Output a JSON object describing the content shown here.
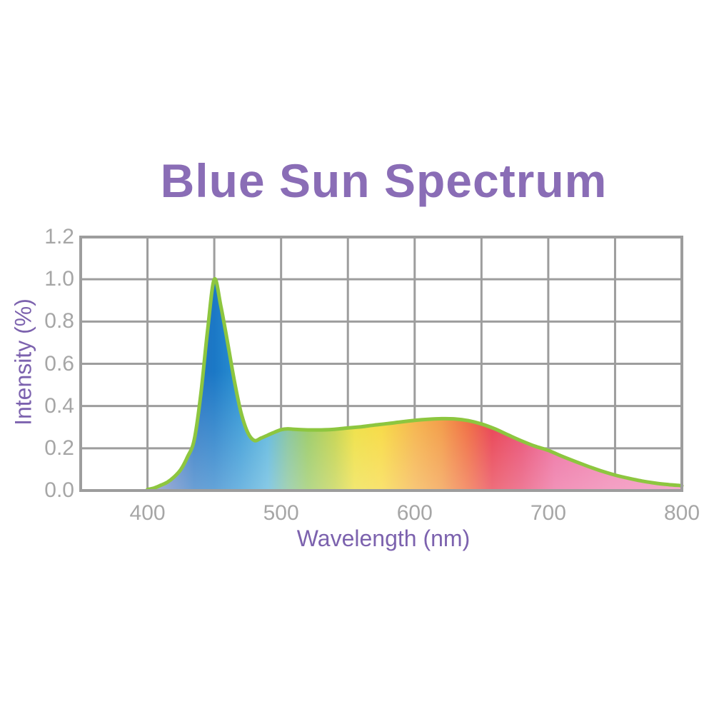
{
  "chart": {
    "title": "Blue Sun Spectrum",
    "xlabel": "Wavelength (nm)",
    "ylabel": "Intensity (%)"
  },
  "chart_data": {
    "type": "area",
    "title": "Blue Sun Spectrum",
    "xlabel": "Wavelength (nm)",
    "ylabel": "Intensity (%)",
    "xlim": [
      350,
      800
    ],
    "ylim": [
      0,
      1.2
    ],
    "x_gridline_step_nm": 50,
    "y_gridline_step": 0.2,
    "grid": true,
    "legend": "none",
    "x_ticks": [
      {
        "value": 400,
        "label": "400"
      },
      {
        "value": 500,
        "label": "500"
      },
      {
        "value": 600,
        "label": "600"
      },
      {
        "value": 700,
        "label": "700"
      },
      {
        "value": 800,
        "label": "800"
      }
    ],
    "y_ticks": [
      {
        "value": 0.0,
        "label": "0.0"
      },
      {
        "value": 0.2,
        "label": "0.2"
      },
      {
        "value": 0.4,
        "label": "0.4"
      },
      {
        "value": 0.6,
        "label": "0.6"
      },
      {
        "value": 0.8,
        "label": "0.8"
      },
      {
        "value": 1.0,
        "label": "1.0"
      },
      {
        "value": 1.2,
        "label": "1.2"
      }
    ],
    "series": [
      {
        "name": "Blue Sun Spectrum",
        "x": [
          400,
          405,
          410,
          415,
          420,
          425,
          430,
          435,
          440,
          445,
          450,
          455,
          460,
          465,
          470,
          475,
          480,
          485,
          490,
          495,
          500,
          505,
          510,
          520,
          530,
          540,
          550,
          560,
          570,
          580,
          590,
          600,
          610,
          620,
          630,
          640,
          650,
          660,
          670,
          680,
          690,
          700,
          710,
          720,
          730,
          740,
          750,
          760,
          770,
          780,
          790,
          800
        ],
        "y": [
          0.005,
          0.012,
          0.025,
          0.04,
          0.065,
          0.1,
          0.16,
          0.24,
          0.46,
          0.76,
          1.0,
          0.87,
          0.7,
          0.52,
          0.37,
          0.275,
          0.237,
          0.248,
          0.262,
          0.276,
          0.288,
          0.292,
          0.29,
          0.287,
          0.287,
          0.29,
          0.296,
          0.302,
          0.31,
          0.317,
          0.325,
          0.332,
          0.337,
          0.34,
          0.339,
          0.331,
          0.315,
          0.292,
          0.263,
          0.235,
          0.21,
          0.19,
          0.163,
          0.138,
          0.114,
          0.092,
          0.073,
          0.058,
          0.045,
          0.035,
          0.028,
          0.023
        ]
      }
    ]
  },
  "colors": {
    "title_purple": "#8a6db6",
    "axis_label_purple": "#7c62ae",
    "tick_gray": "#a6a6a6",
    "grid_gray": "#9d9d9d",
    "curve_stroke_green": "#8dc63f",
    "background": "#ffffff",
    "bottom_fade": {
      "top": "rgba(255,255,255,0)",
      "bottom": "rgba(255,255,255,0.32)"
    },
    "spectrum_stops": [
      {
        "wavelength": 405,
        "color": "#7d85c1"
      },
      {
        "wavelength": 435,
        "color": "#2472c1"
      },
      {
        "wavelength": 450,
        "color": "#1b78c6"
      },
      {
        "wavelength": 470,
        "color": "#2b93d3"
      },
      {
        "wavelength": 490,
        "color": "#4fb0da"
      },
      {
        "wavelength": 505,
        "color": "#77bd92"
      },
      {
        "wavelength": 520,
        "color": "#8ec455"
      },
      {
        "wavelength": 540,
        "color": "#bcce3a"
      },
      {
        "wavelength": 555,
        "color": "#ecdc2e"
      },
      {
        "wavelength": 575,
        "color": "#f6d52b"
      },
      {
        "wavelength": 600,
        "color": "#f4ab36"
      },
      {
        "wavelength": 620,
        "color": "#f18f30"
      },
      {
        "wavelength": 640,
        "color": "#ee5b2b"
      },
      {
        "wavelength": 658,
        "color": "#e62a3d"
      },
      {
        "wavelength": 680,
        "color": "#e63a63"
      },
      {
        "wavelength": 705,
        "color": "#eb5e96"
      },
      {
        "wavelength": 745,
        "color": "#ee73a7"
      },
      {
        "wavelength": 800,
        "color": "#f083b6"
      }
    ]
  }
}
